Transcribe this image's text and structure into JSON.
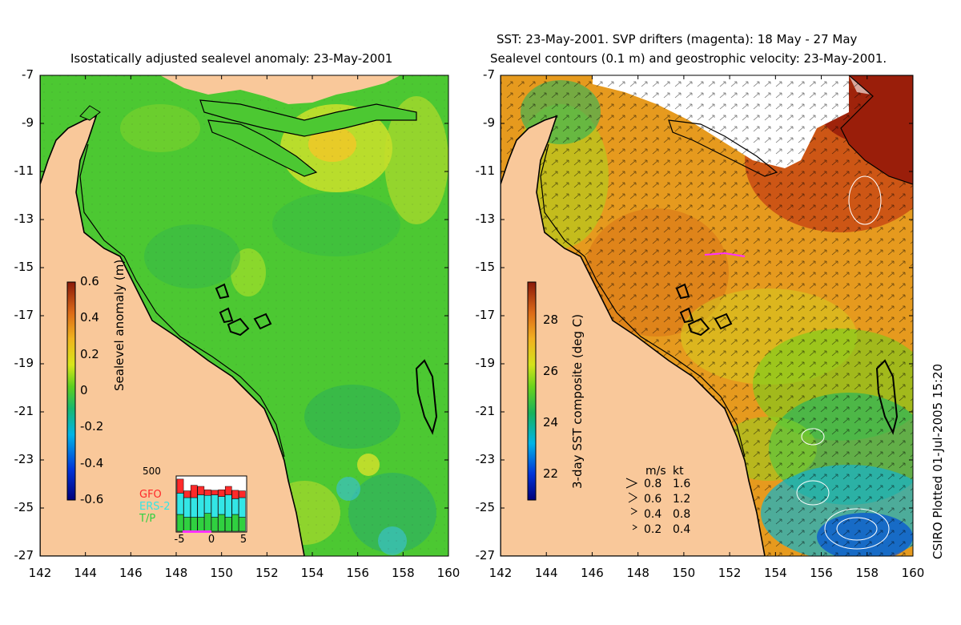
{
  "left_panel": {
    "title": "Isostatically adjusted sealevel anomaly: 23-May-2001",
    "colorbar": {
      "label": "Sealevel anomaly (m)",
      "ticks": [
        "0.6",
        "0.4",
        "0.2",
        "0",
        "-0.2",
        "-0.4",
        "-0.6"
      ],
      "range": [
        -0.6,
        0.6
      ]
    },
    "inset": {
      "ymax_label": "500",
      "legend": [
        "GFO",
        "ERS-2",
        "T/P"
      ],
      "legend_colors": [
        "#ff2a2a",
        "#33e6e6",
        "#30d040"
      ],
      "x_ticks": [
        "-5",
        "0",
        "5"
      ],
      "bars": [
        {
          "tp": 0.3,
          "ers": 0.38,
          "gfo": 0.25
        },
        {
          "tp": 0.25,
          "ers": 0.35,
          "gfo": 0.12
        },
        {
          "tp": 0.25,
          "ers": 0.35,
          "gfo": 0.22
        },
        {
          "tp": 0.25,
          "ers": 0.4,
          "gfo": 0.15
        },
        {
          "tp": 0.32,
          "ers": 0.32,
          "gfo": 0.1
        },
        {
          "tp": 0.25,
          "ers": 0.4,
          "gfo": 0.08
        },
        {
          "tp": 0.3,
          "ers": 0.32,
          "gfo": 0.12
        },
        {
          "tp": 0.25,
          "ers": 0.4,
          "gfo": 0.15
        },
        {
          "tp": 0.3,
          "ers": 0.28,
          "gfo": 0.15
        },
        {
          "tp": 0.25,
          "ers": 0.35,
          "gfo": 0.12
        }
      ]
    }
  },
  "right_panel": {
    "title_line1": "SST: 23-May-2001. SVP drifters (magenta): 18 May - 27 May",
    "title_line2": "Sealevel contours (0.1 m) and geostrophic velocity: 23-May-2001.",
    "colorbar": {
      "label": "3-day SST composite (deg C)",
      "ticks": [
        "28",
        "26",
        "24",
        "22"
      ],
      "range": [
        21,
        29.5
      ]
    },
    "velocity_key": {
      "header_ms": "m/s",
      "header_kt": "kt",
      "rows": [
        {
          "ms": "0.8",
          "kt": "1.6"
        },
        {
          "ms": "0.6",
          "kt": "1.2"
        },
        {
          "ms": "0.4",
          "kt": "0.8"
        },
        {
          "ms": "0.2",
          "kt": "0.4"
        }
      ]
    }
  },
  "axes": {
    "y_ticks": [
      "-7",
      "-9",
      "-11",
      "-13",
      "-15",
      "-17",
      "-19",
      "-21",
      "-23",
      "-25",
      "-27"
    ],
    "x_ticks": [
      "142",
      "144",
      "146",
      "148",
      "150",
      "152",
      "154",
      "156",
      "158",
      "160"
    ],
    "lat_range": [
      -27,
      -7
    ],
    "lon_range": [
      142,
      160
    ]
  },
  "footer": {
    "credit": "CSIRO Plotted 01-Jul-2005 15:20"
  },
  "colors": {
    "land": "#f9c89a",
    "sea_anomaly": "#4cc832",
    "sst_warm": "#e69a1e",
    "coast": "#000000"
  }
}
